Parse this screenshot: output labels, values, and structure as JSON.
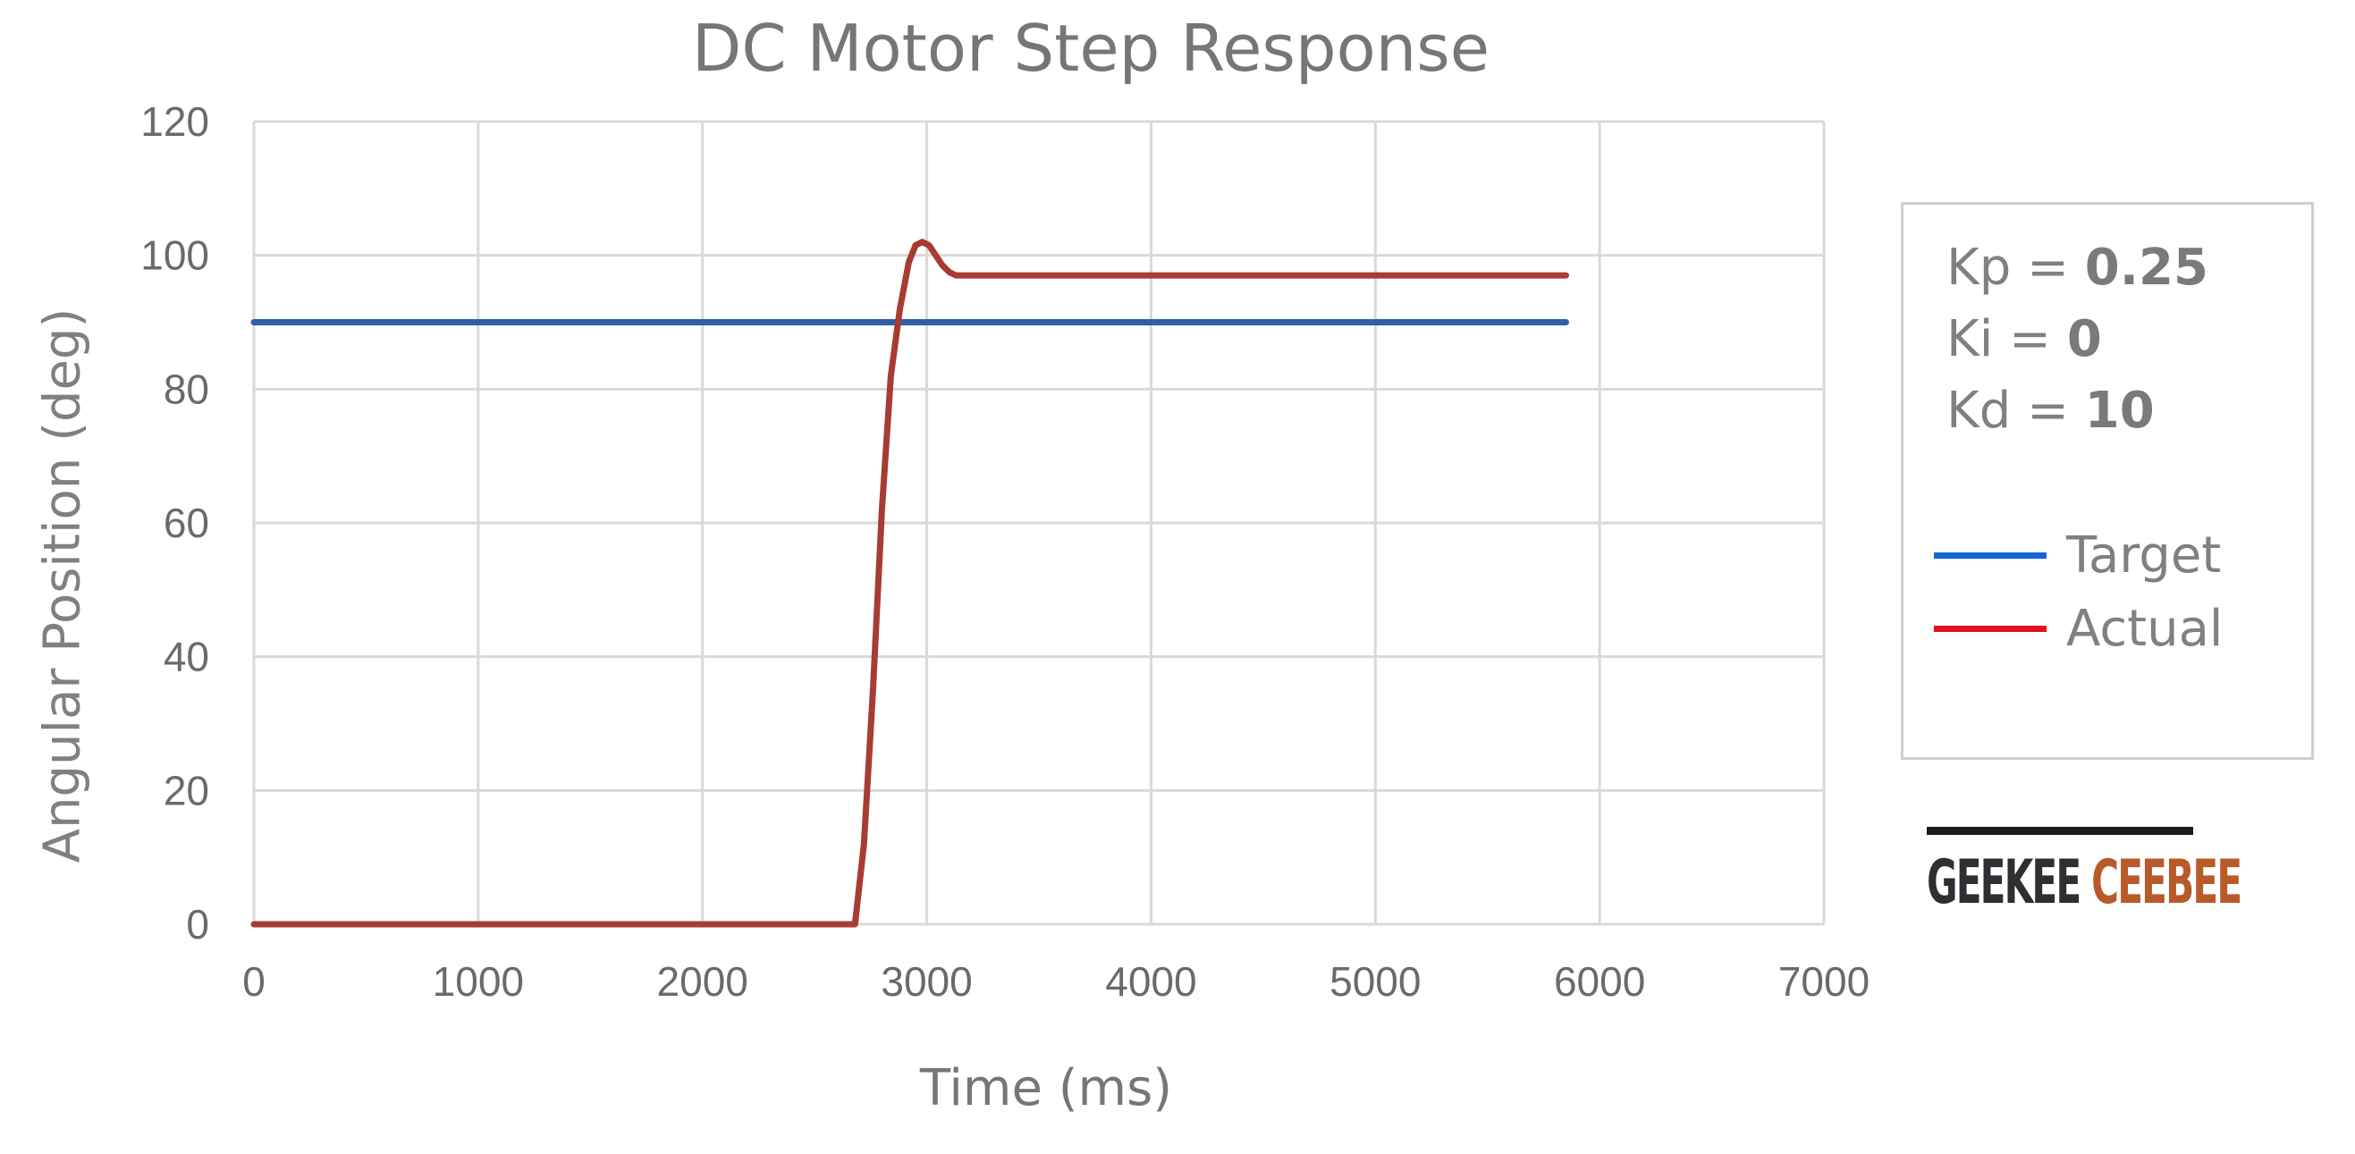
{
  "chart_data": {
    "type": "line",
    "title": "DC Motor Step Response",
    "xlabel": "Time (ms)",
    "ylabel": "Angular Position (deg)",
    "xlim": [
      0,
      7000
    ],
    "ylim": [
      0,
      120
    ],
    "x_ticks": [
      "0",
      "1000",
      "2000",
      "3000",
      "4000",
      "5000",
      "6000",
      "7000"
    ],
    "y_ticks": [
      "0",
      "20",
      "40",
      "60",
      "80",
      "100",
      "120"
    ],
    "grid": true,
    "legend_position": "right",
    "series": [
      {
        "name": "Target",
        "color": "#2f5fa8",
        "x": [
          0,
          5850
        ],
        "y": [
          90,
          90
        ]
      },
      {
        "name": "Actual",
        "color": "#a83c32",
        "x": [
          0,
          2680,
          2720,
          2760,
          2800,
          2840,
          2880,
          2920,
          2950,
          2980,
          3010,
          3040,
          3070,
          3100,
          3130,
          3200,
          5850
        ],
        "y": [
          0,
          0,
          12,
          35,
          62,
          82,
          92,
          99,
          101.5,
          102,
          101.5,
          100,
          98.5,
          97.5,
          97,
          97,
          97
        ]
      }
    ]
  },
  "params": {
    "kp_label": "Kp = ",
    "kp_value": "0.25",
    "ki_label": "Ki = ",
    "ki_value": "0",
    "kd_label": "Kd = ",
    "kd_value": "10"
  },
  "legend": {
    "target_label": "Target",
    "target_color": "#1565d8",
    "actual_label": "Actual",
    "actual_color": "#e0141e"
  },
  "logo": {
    "part1": "GEEKEE",
    "part2": "CEEBEE"
  }
}
